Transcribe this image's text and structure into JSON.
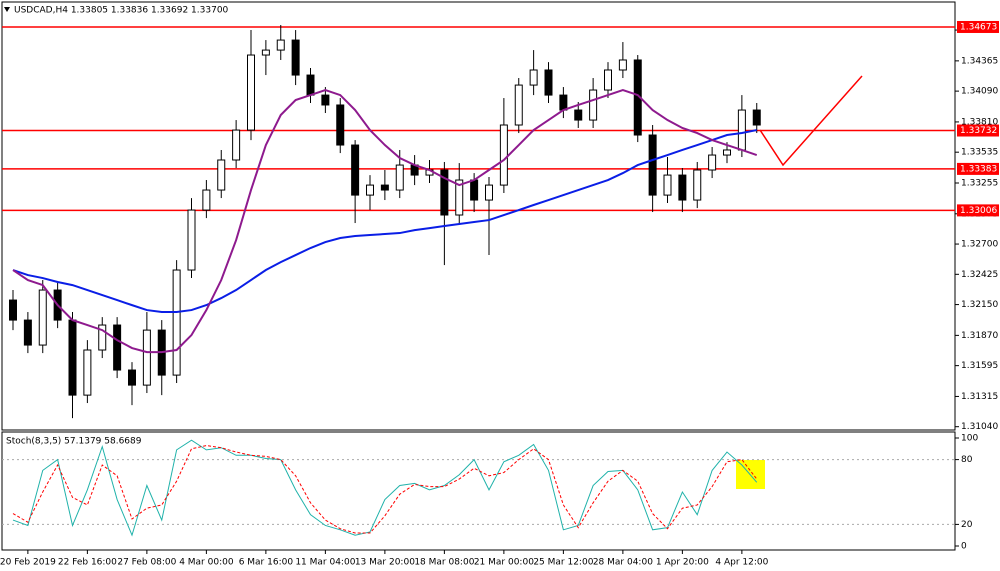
{
  "chart_data": [
    {
      "type": "candlestick",
      "title": "USDCAD,H4  1.33805 1.33836 1.33692 1.33700",
      "categories": [
        null,
        "20 Feb 2019",
        null,
        null,
        null,
        "22 Feb 16:00",
        null,
        null,
        null,
        "27 Feb 08:00",
        null,
        null,
        null,
        "4 Mar 00:00",
        null,
        null,
        null,
        "6 Mar 16:00",
        null,
        null,
        null,
        "11 Mar 04:00",
        null,
        null,
        null,
        "13 Mar 20:00",
        null,
        null,
        null,
        "18 Mar 08:00",
        null,
        null,
        null,
        "21 Mar 00:00",
        null,
        null,
        null,
        "25 Mar 12:00",
        null,
        null,
        null,
        "28 Mar 04:00",
        null,
        null,
        null,
        "1 Apr 20:00",
        null,
        null,
        null,
        "4 Apr 12:00",
        null
      ],
      "open": [
        1.32191,
        1.32009,
        1.31782,
        1.32282,
        1.32009,
        1.31327,
        1.31737,
        1.31964,
        1.31555,
        1.31418,
        1.31918,
        1.31509,
        1.32464,
        1.33009,
        1.33191,
        1.33464,
        1.33736,
        1.34418,
        1.34463,
        1.34554,
        1.34236,
        1.34054,
        1.33964,
        1.336,
        1.33145,
        1.33236,
        1.33191,
        1.33418,
        1.33327,
        1.33373,
        1.32964,
        1.33282,
        1.331,
        1.33236,
        1.33782,
        1.34145,
        1.34282,
        1.34054,
        1.33918,
        1.33827,
        1.341,
        1.34282,
        1.34373,
        1.33691,
        1.33145,
        1.33327,
        1.331,
        1.33373,
        1.33509,
        1.33555,
        1.33918
      ],
      "high": [
        1.32282,
        1.32082,
        1.32373,
        1.32355,
        1.32082,
        1.31827,
        1.32036,
        1.32036,
        1.31627,
        1.32082,
        1.32009,
        1.32554,
        1.33118,
        1.33282,
        1.33555,
        1.33827,
        1.34645,
        1.34554,
        1.34691,
        1.34645,
        1.343,
        1.34127,
        1.34027,
        1.33645,
        1.33327,
        1.33373,
        1.33555,
        1.33509,
        1.33464,
        1.33446,
        1.33436,
        1.33345,
        1.33309,
        1.34027,
        1.34209,
        1.34463,
        1.34354,
        1.34127,
        1.33991,
        1.34209,
        1.34354,
        1.34536,
        1.34418,
        1.33782,
        1.33491,
        1.33391,
        1.33446,
        1.33582,
        1.33627,
        1.34054,
        1.33982
      ],
      "low": [
        1.31918,
        1.31709,
        1.31709,
        1.31936,
        1.31118,
        1.31255,
        1.31664,
        1.31482,
        1.31236,
        1.31346,
        1.31327,
        1.31437,
        1.32391,
        1.32936,
        1.33118,
        1.33391,
        1.33645,
        1.34236,
        1.34373,
        1.34145,
        1.33982,
        1.33891,
        1.33527,
        1.32891,
        1.33009,
        1.331,
        1.33118,
        1.33236,
        1.33255,
        1.32509,
        1.32891,
        1.32991,
        1.326,
        1.33164,
        1.33709,
        1.34054,
        1.33982,
        1.33845,
        1.33755,
        1.33755,
        1.34027,
        1.34209,
        1.33627,
        1.32991,
        1.33073,
        1.32991,
        1.33027,
        1.333,
        1.33436,
        1.33491,
        1.33709
      ],
      "close": [
        1.32009,
        1.31782,
        1.32282,
        1.32009,
        1.31327,
        1.31737,
        1.31964,
        1.31555,
        1.31418,
        1.31918,
        1.31509,
        1.32464,
        1.33009,
        1.33191,
        1.33464,
        1.33736,
        1.34418,
        1.34463,
        1.34554,
        1.34236,
        1.34054,
        1.33964,
        1.336,
        1.33145,
        1.33236,
        1.33191,
        1.33418,
        1.33327,
        1.33373,
        1.32964,
        1.33282,
        1.331,
        1.33236,
        1.33782,
        1.34145,
        1.34282,
        1.34054,
        1.33918,
        1.33827,
        1.341,
        1.34282,
        1.34373,
        1.33691,
        1.33145,
        1.33327,
        1.331,
        1.33373,
        1.33509,
        1.33555,
        1.33918,
        1.33782
      ],
      "moving_averages": [
        {
          "color": "#0a1ee6",
          "values": [
            1.32464,
            1.32418,
            1.32391,
            1.32355,
            1.32327,
            1.32282,
            1.32236,
            1.32191,
            1.32145,
            1.321,
            1.32082,
            1.32082,
            1.321,
            1.32145,
            1.32209,
            1.32282,
            1.32373,
            1.32464,
            1.32536,
            1.326,
            1.32664,
            1.32718,
            1.32755,
            1.32773,
            1.32782,
            1.32791,
            1.328,
            1.32827,
            1.32845,
            1.32864,
            1.32882,
            1.329,
            1.32918,
            1.32964,
            1.33009,
            1.33055,
            1.331,
            1.33145,
            1.33191,
            1.33236,
            1.33282,
            1.33345,
            1.33418,
            1.33464,
            1.33509,
            1.33555,
            1.336,
            1.33645,
            1.33691,
            1.33709,
            1.33736
          ]
        },
        {
          "color": "#8e1a8e",
          "values": [
            1.32464,
            1.32373,
            1.32327,
            1.32145,
            1.32009,
            1.31964,
            1.31918,
            1.31827,
            1.31755,
            1.31718,
            1.31718,
            1.31737,
            1.31873,
            1.321,
            1.32373,
            1.32736,
            1.33191,
            1.336,
            1.33873,
            1.34009,
            1.34054,
            1.341,
            1.34054,
            1.33918,
            1.33736,
            1.336,
            1.33482,
            1.33418,
            1.33373,
            1.333,
            1.33236,
            1.33282,
            1.33373,
            1.33464,
            1.336,
            1.33736,
            1.33827,
            1.33918,
            1.33964,
            1.34009,
            1.34054,
            1.341,
            1.34054,
            1.33918,
            1.33827,
            1.33755,
            1.33709,
            1.33645,
            1.336,
            1.33555,
            1.33509
          ]
        }
      ],
      "levels": [
        {
          "value": 1.34673,
          "color": "#ff0000"
        },
        {
          "value": 1.33732,
          "color": "#ff0000"
        },
        {
          "value": 1.33383,
          "color": "#ff0000"
        },
        {
          "value": 1.33006,
          "color": "#ff0000"
        }
      ],
      "ylim": [
        1.3101,
        1.349
      ],
      "yticks": [
        1.34645,
        1.34365,
        {
          "value": 1.3409,
          "label": "1.34090"
        },
        {
          "value": 1.3381,
          "label": "1.33810"
        },
        1.33535,
        1.33255,
        1.32975,
        {
          "value": 1.327,
          "label": "1.32700"
        },
        1.32425,
        {
          "value": 1.3215,
          "label": "1.32150"
        },
        {
          "value": 1.3187,
          "label": "1.31870"
        },
        1.31595,
        1.31315,
        {
          "value": 1.3104,
          "label": "1.31040"
        }
      ]
    },
    {
      "type": "line",
      "title": "Stoch(8,3,5) 57.1379 58.6689",
      "series": [
        {
          "color": "#20b2aa",
          "dash": false,
          "values": [
            24,
            19,
            70,
            80,
            19,
            52,
            92,
            43,
            10,
            56,
            24,
            89,
            98,
            89,
            91,
            84,
            84,
            81,
            80,
            52,
            29,
            19,
            15,
            10,
            13,
            43,
            56,
            58,
            52,
            56,
            66,
            80,
            52,
            78,
            84,
            94,
            70,
            15,
            19,
            56,
            69,
            70,
            52,
            15,
            17,
            50,
            29,
            70,
            87,
            75,
            59
          ]
        },
        {
          "color": "#ff0000",
          "dash": true,
          "values": [
            30,
            22,
            50,
            75,
            45,
            38,
            75,
            65,
            25,
            35,
            38,
            60,
            90,
            93,
            91,
            87,
            84,
            83,
            80,
            65,
            40,
            24,
            16,
            12,
            12,
            28,
            48,
            57,
            55,
            55,
            62,
            72,
            65,
            68,
            80,
            90,
            80,
            38,
            17,
            40,
            60,
            70,
            60,
            30,
            16,
            35,
            38,
            55,
            78,
            80,
            62
          ]
        }
      ],
      "levels": [
        80,
        20
      ],
      "ylim": [
        0,
        100
      ],
      "yticks": [
        100,
        80,
        20,
        0
      ]
    }
  ]
}
